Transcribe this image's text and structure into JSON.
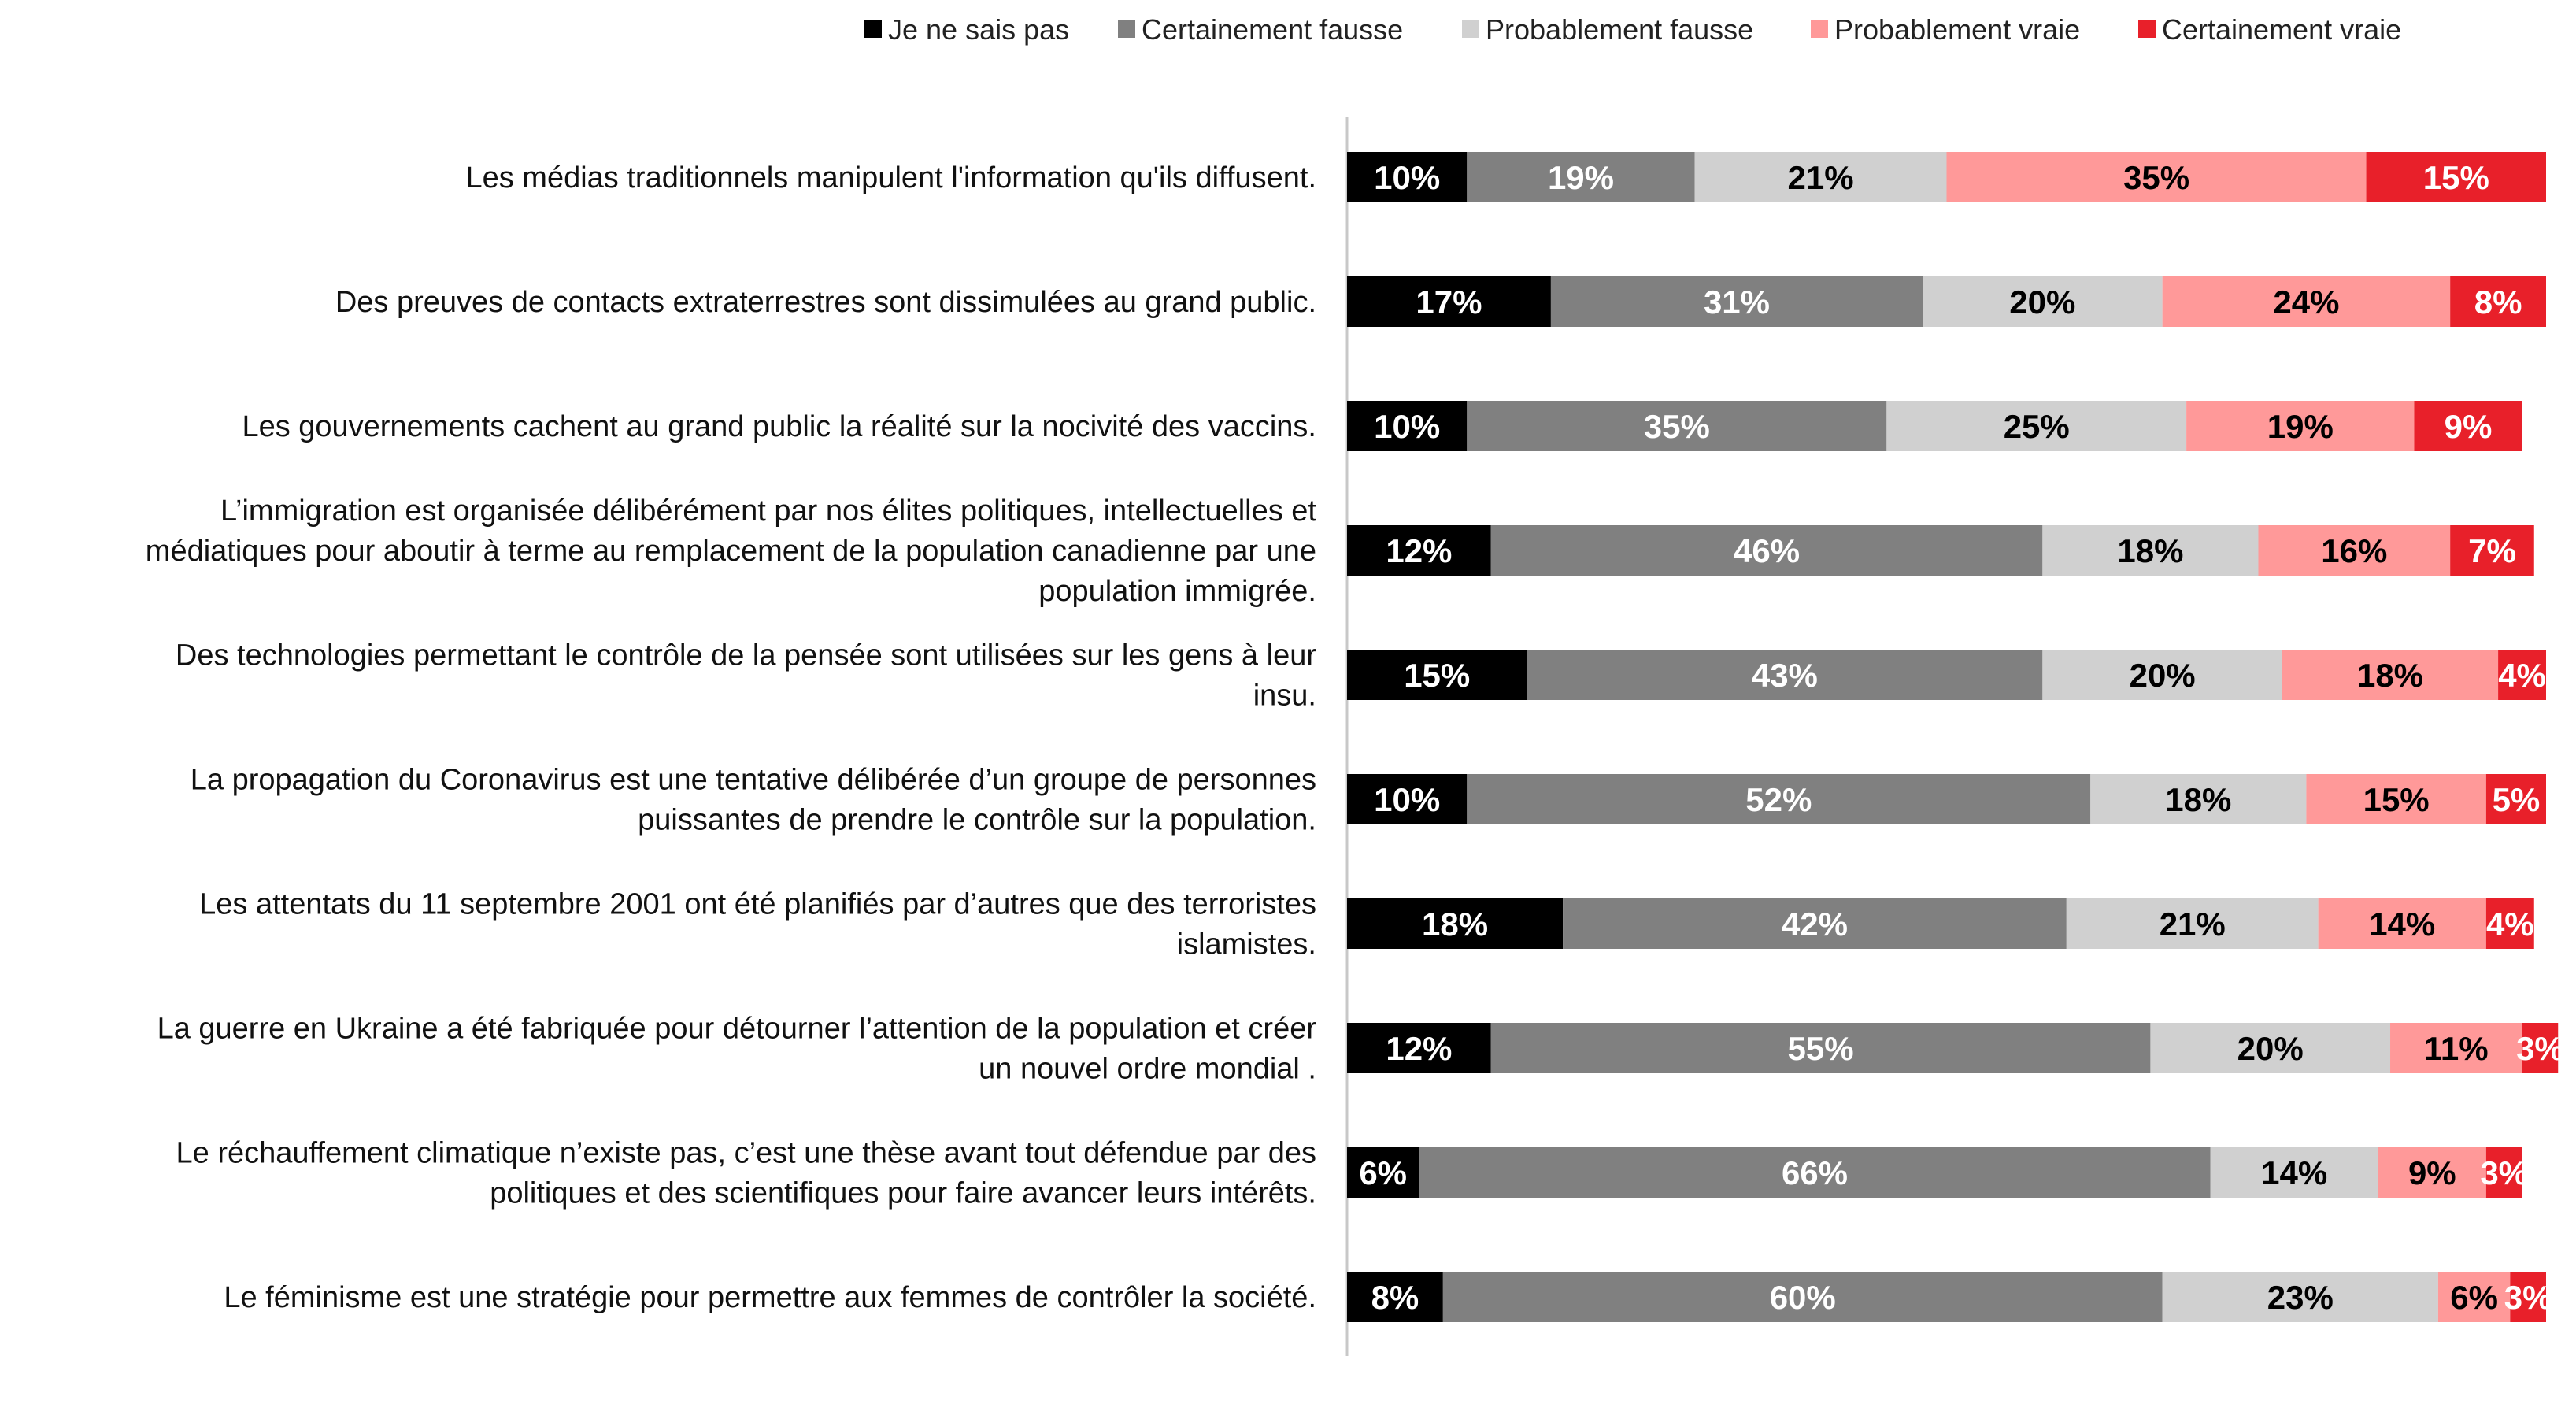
{
  "chart_data": {
    "type": "bar",
    "orientation": "horizontal",
    "stacked": true,
    "percent": true,
    "legend_position": "top",
    "grid": false,
    "categories": [
      [
        "Les médias traditionnels manipulent l'information qu'ils diffusent."
      ],
      [
        "Des preuves de contacts extraterrestres sont dissimulées au grand public."
      ],
      [
        "Les gouvernements cachent au grand public la réalité sur la nocivité des vaccins."
      ],
      [
        "L’immigration est organisée délibérément par nos élites politiques, intellectuelles et",
        "médiatiques pour aboutir à terme au remplacement de la population canadienne par une",
        "population immigrée."
      ],
      [
        "Des technologies permettant le contrôle de la pensée sont utilisées sur les gens à leur",
        "insu."
      ],
      [
        "La propagation du Coronavirus est une tentative délibérée d’un groupe de personnes",
        "puissantes de prendre le contrôle sur la population."
      ],
      [
        "Les  attentats du 11 septembre 2001 ont été planifiés par d’autres que des terroristes",
        "islamistes."
      ],
      [
        "La guerre en Ukraine a été fabriquée pour détourner l’attention de la population et créer",
        "un nouvel ordre mondial ."
      ],
      [
        "Le réchauffement climatique n’existe pas, c’est une thèse avant tout défendue par des",
        "politiques et des scientifiques pour faire avancer leurs intérêts."
      ],
      [
        "Le féminisme est une stratégie pour permettre aux femmes de contrôler la société."
      ]
    ],
    "series": [
      {
        "name": "Je ne sais pas",
        "color": "#000000",
        "label_color": "#ffffff",
        "values": [
          10,
          17,
          10,
          12,
          15,
          10,
          18,
          12,
          6,
          8
        ]
      },
      {
        "name": "Certainement fausse",
        "color": "#808080",
        "label_color": "#ffffff",
        "values": [
          19,
          31,
          35,
          46,
          43,
          52,
          42,
          55,
          66,
          60
        ]
      },
      {
        "name": "Probablement fausse",
        "color": "#d0d0d0",
        "label_color": "#000000",
        "values": [
          21,
          20,
          25,
          18,
          20,
          18,
          21,
          20,
          14,
          23
        ]
      },
      {
        "name": "Probablement vraie",
        "color": "#ff9999",
        "label_color": "#000000",
        "values": [
          35,
          24,
          19,
          16,
          18,
          15,
          14,
          11,
          9,
          6
        ]
      },
      {
        "name": "Certainement vraie",
        "color": "#e8202a",
        "label_color": "#ffffff",
        "values": [
          15,
          8,
          9,
          7,
          4,
          5,
          4,
          3,
          3,
          3
        ]
      }
    ]
  }
}
